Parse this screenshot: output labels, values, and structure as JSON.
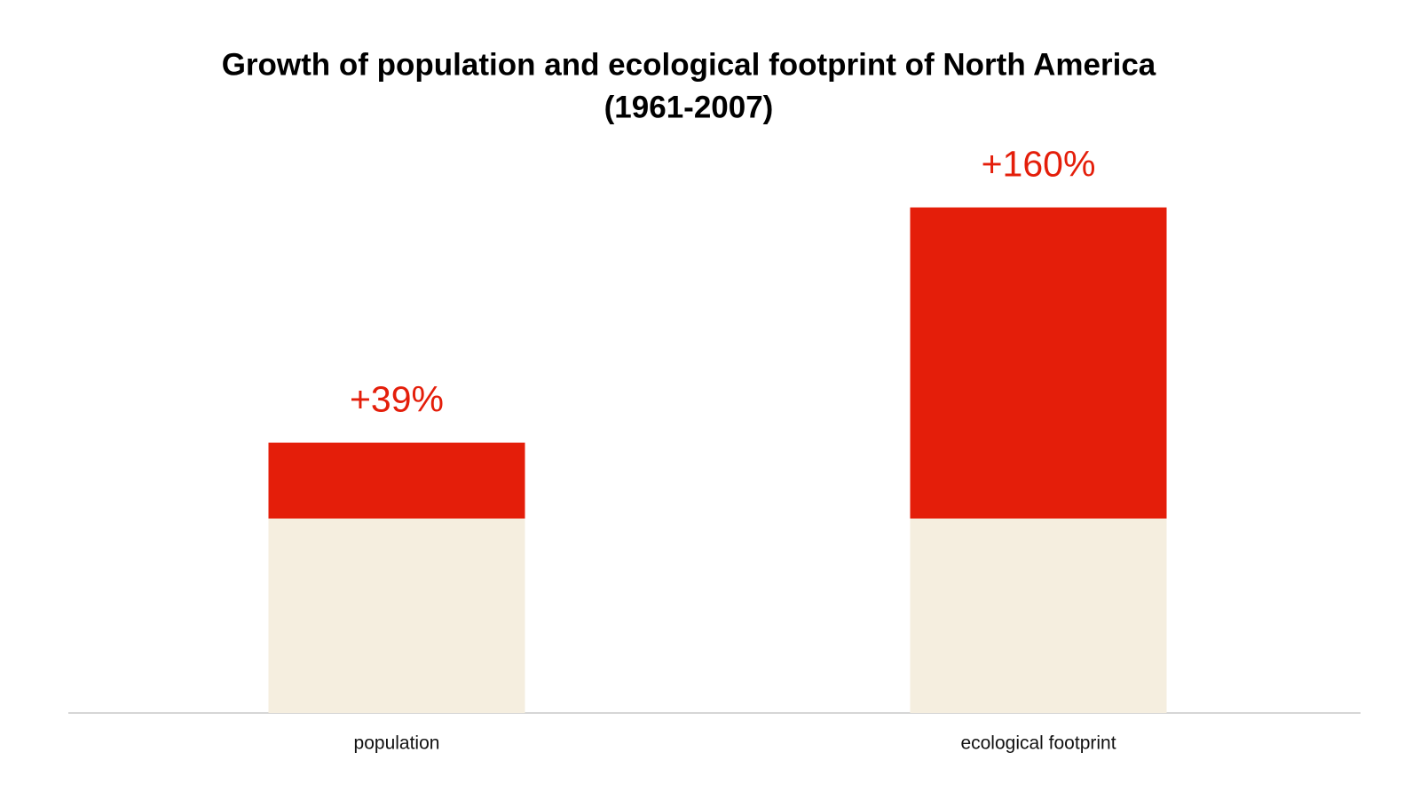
{
  "chart_data": {
    "type": "stacked-bar",
    "title": [
      "Growth of population and ecological footprint of North America",
      "(1961-2007)"
    ],
    "categories": [
      "population",
      "ecological footprint"
    ],
    "series": [
      {
        "color": "#f5eedf",
        "values": [
          100,
          100
        ]
      },
      {
        "color": "#e41e0a",
        "values": [
          39,
          160
        ],
        "value_labels": [
          "+39%",
          "+160%"
        ]
      }
    ],
    "ylim": [
      0,
      300
    ]
  }
}
